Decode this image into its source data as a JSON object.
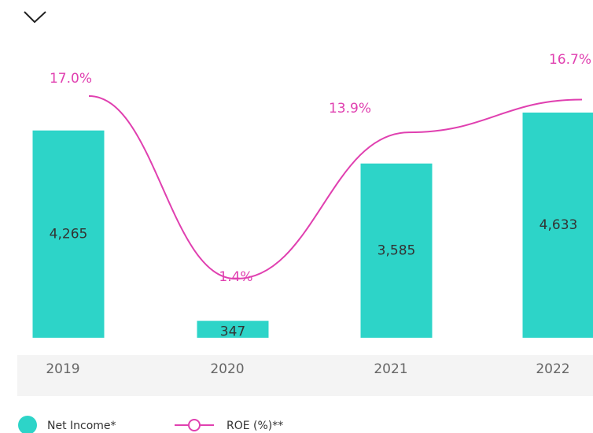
{
  "chart_data": {
    "type": "bar-line",
    "categories": [
      "2019",
      "2020",
      "2021",
      "2022"
    ],
    "series": [
      {
        "name": "Net Income*",
        "color": "#2dd4c8",
        "values": [
          4265,
          347,
          3585,
          4633
        ],
        "value_labels": [
          "4,265",
          "347",
          "3,585",
          "4,633"
        ]
      },
      {
        "name": "ROE (%)**",
        "color": "#e040b0",
        "axis": "y2",
        "values": [
          17.0,
          1.4,
          13.9,
          16.7
        ],
        "value_labels": [
          "17.0%",
          "1.4%",
          "13.9%",
          "16.7%"
        ]
      }
    ]
  }
}
